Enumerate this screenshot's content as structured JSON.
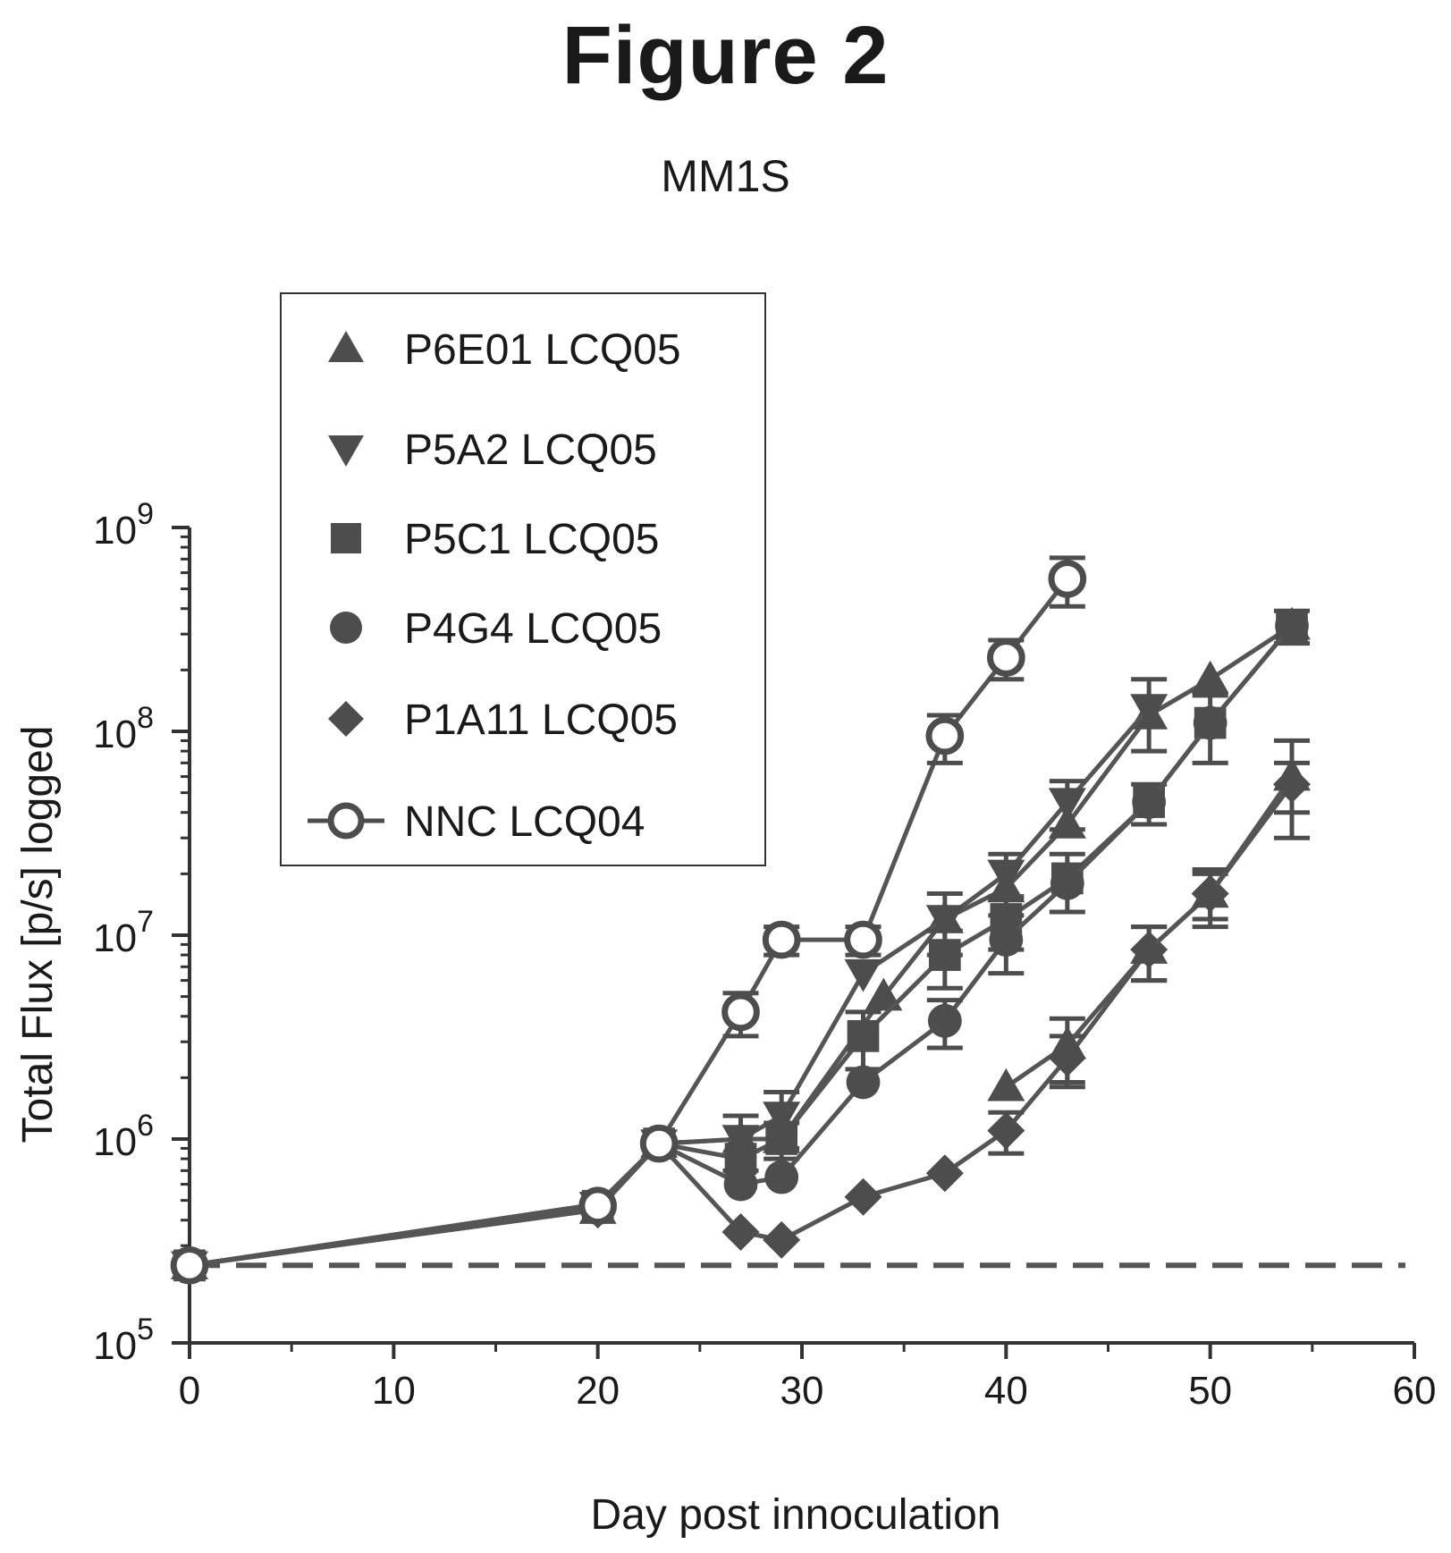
{
  "figure_title": "Figure 2",
  "chart_data": {
    "type": "line",
    "title": "MM1S",
    "xlabel": "Day post innoculation",
    "ylabel": "Total Flux [p/s] logged",
    "xlim": [
      0,
      60
    ],
    "ylim": [
      100000,
      1000000000
    ],
    "yscale": "log",
    "x_ticks": [
      "0",
      "10",
      "20",
      "30",
      "40",
      "50",
      "60"
    ],
    "y_ticks": [
      {
        "base": "10",
        "exp": "5"
      },
      {
        "base": "10",
        "exp": "6"
      },
      {
        "base": "10",
        "exp": "7"
      },
      {
        "base": "10",
        "exp": "8"
      },
      {
        "base": "10",
        "exp": "9"
      }
    ],
    "baseline": 240000,
    "legend_position": "top-left",
    "series": [
      {
        "name": "P6E01 LCQ05",
        "marker": "triangle-up",
        "x": [
          0,
          20,
          23,
          27,
          29,
          34,
          37,
          40,
          43,
          47,
          50,
          54
        ],
        "y": [
          240000,
          450000,
          950000,
          1000000,
          1000000,
          5000000,
          12000000,
          17000000,
          35000000,
          120000000,
          180000000,
          330000000
        ],
        "err": [
          0,
          0,
          0,
          0,
          0,
          0,
          0,
          0,
          0,
          0,
          0,
          0
        ],
        "note_x": []
      },
      {
        "name": "P5A2 LCQ05",
        "marker": "triangle-down",
        "x": [
          0,
          20,
          23,
          27,
          29,
          33,
          37,
          40,
          43,
          47
        ],
        "y": [
          240000,
          470000,
          950000,
          1000000,
          1300000,
          6500000,
          12000000,
          20000000,
          45000000,
          130000000
        ],
        "err": [
          0,
          0,
          0,
          300000,
          400000,
          0,
          4000000,
          5000000,
          12000000,
          50000000
        ]
      },
      {
        "name": "P5C1 LCQ05",
        "marker": "square",
        "x": [
          0,
          20,
          23,
          27,
          29,
          33,
          37,
          40,
          43,
          47,
          50,
          54
        ],
        "y": [
          240000,
          470000,
          950000,
          800000,
          1000000,
          3200000,
          8000000,
          12000000,
          19000000,
          45000000,
          110000000,
          330000000
        ],
        "err": [
          0,
          0,
          0,
          0,
          200000,
          1000000,
          2500000,
          3500000,
          6000000,
          10000000,
          40000000,
          60000000
        ]
      },
      {
        "name": "P4G4 LCQ05",
        "marker": "circle",
        "x": [
          0,
          20,
          23,
          27,
          29,
          33,
          37,
          40,
          43,
          47,
          50,
          54
        ],
        "y": [
          240000,
          480000,
          950000,
          600000,
          650000,
          1900000,
          3800000,
          9500000,
          18000000,
          45000000,
          110000000,
          330000000
        ],
        "err": [
          0,
          0,
          0,
          0,
          0,
          0,
          1000000,
          3000000,
          0,
          0,
          0,
          0
        ]
      },
      {
        "name": "P1A11 LCQ05",
        "marker": "diamond",
        "x": [
          0,
          20,
          23,
          27,
          29,
          33,
          37,
          40,
          43,
          47,
          50,
          54
        ],
        "y": [
          240000,
          450000,
          950000,
          350000,
          320000,
          520000,
          680000,
          1100000,
          2500000,
          8500000,
          16000000,
          55000000
        ],
        "err": [
          0,
          0,
          0,
          0,
          0,
          0,
          0,
          250000,
          700000,
          2500000,
          4000000,
          15000000
        ]
      },
      {
        "name": "NNC LCQ04",
        "marker": "circle-open",
        "x": [
          0,
          20,
          23,
          27,
          29,
          33,
          37,
          40,
          43
        ],
        "y": [
          240000,
          470000,
          950000,
          4200000,
          9500000,
          9500000,
          95000000,
          230000000,
          560000000
        ],
        "err": [
          0,
          0,
          0,
          1000000,
          1500000,
          1500000,
          25000000,
          50000000,
          150000000
        ]
      }
    ],
    "extra_triangle_points": {
      "x": [
        40,
        43,
        47,
        50,
        54
      ],
      "y": [
        1800000,
        2900000,
        8500000,
        16000000,
        60000000
      ],
      "err": [
        0,
        1000000,
        2500000,
        5000000,
        30000000
      ]
    },
    "marker_color": "#4d4d4d",
    "line_color": "#555555"
  }
}
